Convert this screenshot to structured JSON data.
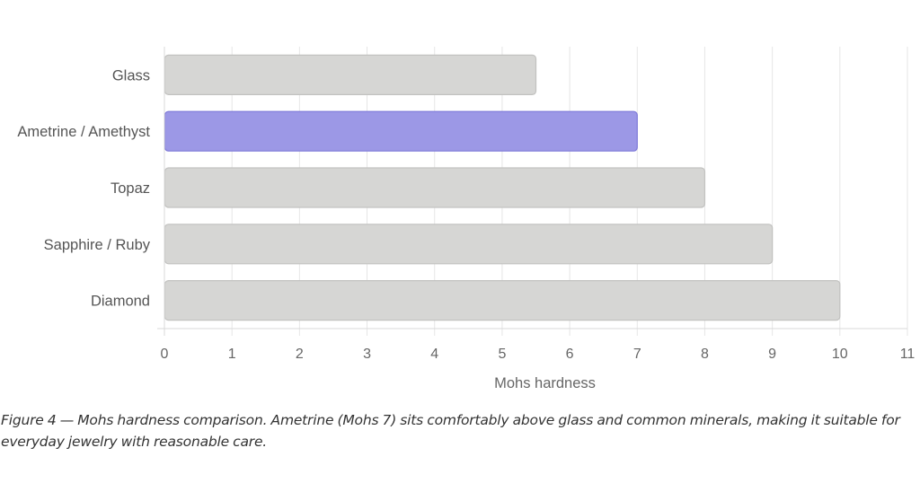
{
  "chart_data": {
    "type": "bar",
    "orientation": "horizontal",
    "categories": [
      "Glass",
      "Ametrine / Amethyst",
      "Topaz",
      "Sapphire / Ruby",
      "Diamond"
    ],
    "values": [
      5.5,
      7,
      8,
      9,
      10
    ],
    "highlight": "Ametrine / Amethyst",
    "xlabel": "Mohs hardness",
    "xlim": [
      0,
      11
    ],
    "xticks": [
      "0",
      "1",
      "2",
      "3",
      "4",
      "5",
      "6",
      "7",
      "8",
      "9",
      "10",
      "11"
    ],
    "grid": "vertical",
    "colors": {
      "bar_fill": "#d6d6d4",
      "bar_stroke": "#c2c2c0",
      "highlight_fill": "#9c98e6",
      "highlight_stroke": "#7d78d8"
    }
  },
  "caption": "Figure 4 — Mohs hardness comparison. Ametrine (Mohs 7) sits comfortably above glass and common minerals, making it suitable for everyday jewelry with reasonable care."
}
